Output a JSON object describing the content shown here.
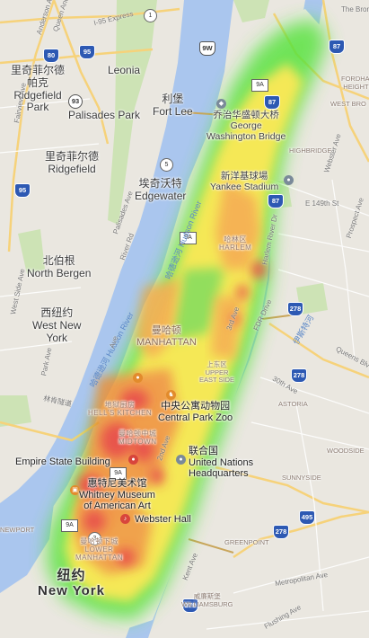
{
  "cities": [
    {
      "zh": "里奇菲尔德",
      "zh2": "帕克",
      "en": "Ridgefield",
      "en2": "Park"
    },
    {
      "zh": "里奇菲尔德",
      "en": "Ridgefield"
    },
    {
      "en": "Leonia"
    },
    {
      "en": "Palisades Park"
    },
    {
      "zh": "利堡",
      "en": "Fort Lee"
    },
    {
      "zh": "埃奇沃特",
      "en": "Edgewater"
    },
    {
      "zh": "北伯根",
      "en": "North Bergen"
    },
    {
      "zh": "西纽约",
      "en": "West New",
      "en2": "York"
    }
  ],
  "new_york": {
    "zh": "纽约",
    "en": "New York"
  },
  "landmarks": [
    {
      "zh": "乔治华盛顿大桥",
      "en": "George",
      "en2": "Washington Bridge"
    },
    {
      "zh": "新洋基球場",
      "en": "Yankee Stadium"
    },
    {
      "zh": "中央公寓动物园",
      "en": "Central Park Zoo"
    },
    {
      "zh": "联合国",
      "en": "United Nations",
      "en2": "Headquarters"
    },
    {
      "en": "Empire State Building"
    },
    {
      "zh": "惠特尼美术馆",
      "en": "Whitney Museum",
      "en2": "of American Art"
    },
    {
      "en": "Webster Hall"
    }
  ],
  "districts": [
    {
      "zh": "曼哈顿",
      "en": "MANHATTAN"
    },
    {
      "zh": "哈林区",
      "en": "HARLEM"
    },
    {
      "zh": "上东区",
      "en": "UPPER",
      "en2": "EAST SIDE"
    },
    {
      "zh": "地狱厨房",
      "en": "HELL'S KITCHEN"
    },
    {
      "zh": "曼哈顿中城",
      "en": "MIDTOWN"
    },
    {
      "zh": "曼哈顿下城",
      "en": "LOWER",
      "en2": "MANHATTAN"
    },
    {
      "zh": "威廉斯堡",
      "en": "WILLIAMSBURG"
    },
    {
      "en": "ASTORIA"
    },
    {
      "en": "SUNNYSIDE"
    },
    {
      "en": "GREENPOINT"
    },
    {
      "en": "WOODSIDE"
    },
    {
      "en": "HIGHBRIDGE"
    },
    {
      "en": "FORDHAM",
      "en2": "HEIGHTS"
    },
    {
      "en": "WEST BRO"
    },
    {
      "en": "NEWPORT"
    }
  ],
  "water": [
    {
      "zh": "哈德逊河",
      "en": "Hudson River"
    },
    {
      "zh": "哈德逊河",
      "en": "Hudson River"
    },
    {
      "zh": "伊斯特河",
      "en": "East River"
    },
    {
      "zh": "林肯隧道",
      "en": "Lincoln Tunnel"
    }
  ],
  "roads": [
    "I-95 Express",
    "Palisades Ave",
    "River Rd",
    "3rd Ave",
    "2nd Ave",
    "Harlem River Dr",
    "FDR Drive",
    "Metropolitan Ave",
    "Flushing Ave",
    "Kent Ave",
    "E 149th St",
    "Webster Ave",
    "Prospect Ave",
    "30th Ave",
    "Queens Blvd",
    "Anderson Ave",
    "Fairview Ave",
    "West Side Ave",
    "Park Ave",
    "Ave",
    "Queen Anders",
    "The Bronx"
  ],
  "shields": [
    "80",
    "95",
    "9W",
    "93",
    "95",
    "87",
    "278",
    "278",
    "495",
    "278",
    "278",
    "87",
    "87"
  ],
  "state_routes": [
    "9A",
    "9A",
    "9A",
    "9A",
    "1",
    "5",
    "3"
  ],
  "heatmap": {
    "colors": [
      "#00ff00",
      "#ffff00",
      "#ff0000"
    ],
    "label": ""
  }
}
